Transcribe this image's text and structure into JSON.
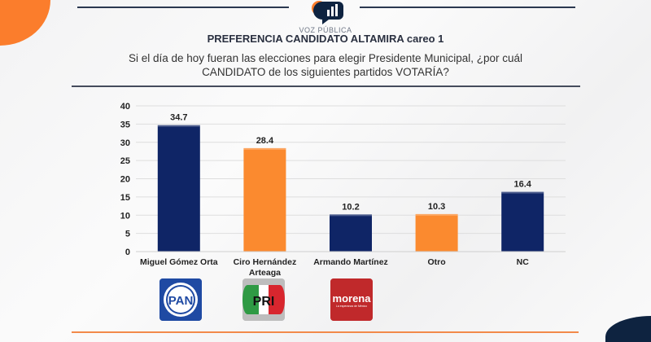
{
  "header": {
    "brand": "VOZ PÚBLICA",
    "title": "PREFERENCIA CANDIDATO ALTAMIRA careo 1",
    "question": "Si el día de hoy fueran las elecciones para elegir Presidente Municipal, ¿por cuál CANDIDATO de los siguientes partidos VOTARÍA?"
  },
  "parties": [
    {
      "name": "PAN",
      "label": "PAN",
      "color": "#1f4aa3"
    },
    {
      "name": "PRI",
      "label": "PRI",
      "color": "#bdbdbd"
    },
    {
      "name": "Morena",
      "label": "morena",
      "tagline": "La esperanza de México",
      "color": "#c0292b"
    }
  ],
  "chart_data": {
    "type": "bar",
    "title": "PREFERENCIA CANDIDATO ALTAMIRA careo 1",
    "categories": [
      "Miguel Gómez Orta",
      "Ciro Hernández Arteaga",
      "Armando Martínez",
      "Otro",
      "NC"
    ],
    "category_lines": [
      [
        "Miguel Gómez Orta"
      ],
      [
        "Ciro Hernández",
        "Arteaga"
      ],
      [
        "Armando Martínez"
      ],
      [
        "Otro"
      ],
      [
        "NC"
      ]
    ],
    "values": [
      34.7,
      28.4,
      10.2,
      10.3,
      16.4
    ],
    "value_labels": [
      "34.7",
      "28.4",
      "10.2",
      "10.3",
      "16.4"
    ],
    "bar_colors": [
      "#0f2566",
      "#fb8a2f",
      "#0f2566",
      "#fb8a2f",
      "#0f2566"
    ],
    "xlabel": "",
    "ylabel": "",
    "ylim": [
      0,
      40
    ],
    "yticks": [
      0,
      5,
      10,
      15,
      20,
      25,
      30,
      35,
      40
    ],
    "grid": true,
    "legend": "none"
  }
}
